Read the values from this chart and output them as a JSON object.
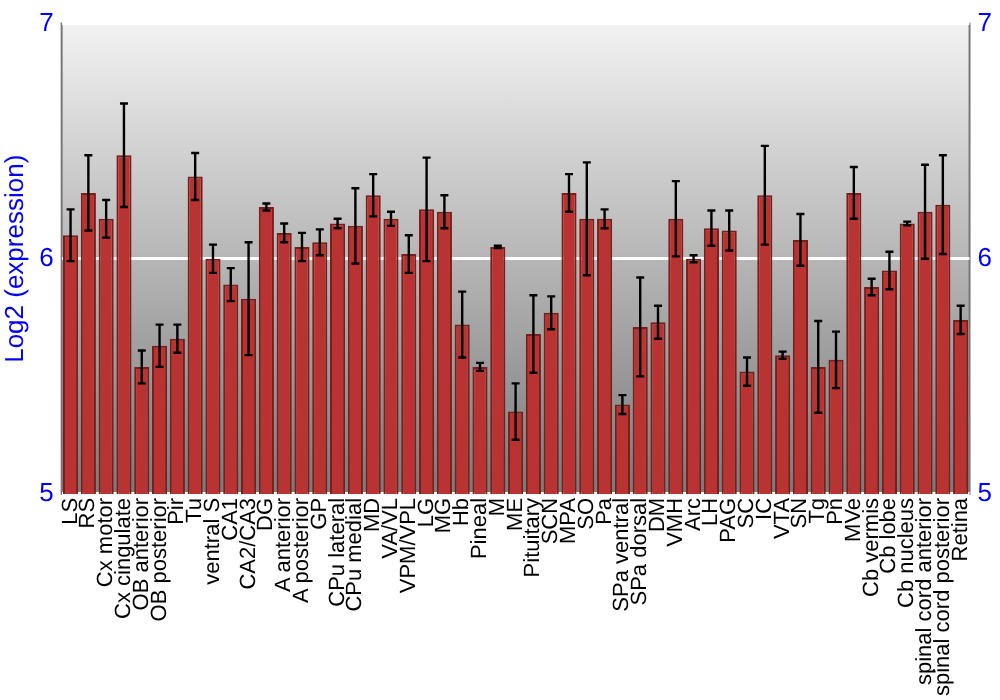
{
  "chart_data": {
    "type": "bar",
    "ylabel": "Log2 (expression)",
    "categories": [
      "LS",
      "RS",
      "Cx motor",
      "Cx cingulate",
      "OB anterior",
      "OB posterior",
      "Pir",
      "Tu",
      "ventral S",
      "CA1",
      "CA2/CA3",
      "DG",
      "A anterior",
      "A posterior",
      "GP",
      "CPu lateral",
      "CPu medial",
      "MD",
      "VA/VL",
      "VPM/VPL",
      "LG",
      "MG",
      "Hb",
      "Pineal",
      "M",
      "ME",
      "Pituitary",
      "SCN",
      "MPA",
      "SO",
      "Pa",
      "SPa ventral",
      "SPa dorsal",
      "DM",
      "VMH",
      "Arc",
      "LH",
      "PAG",
      "SC",
      "IC",
      "VTA",
      "SN",
      "Tg",
      "Pn",
      "MVe",
      "Cb vermis",
      "Cb lobe",
      "Cb nucleus",
      "spinal cord anterior",
      "spinal cord posterior",
      "Retina"
    ],
    "values": [
      6.1,
      6.28,
      6.17,
      6.44,
      5.54,
      5.63,
      5.66,
      6.35,
      6.0,
      5.89,
      5.83,
      6.22,
      6.11,
      6.05,
      6.07,
      6.15,
      6.14,
      6.27,
      6.17,
      6.02,
      6.21,
      6.2,
      5.72,
      5.54,
      6.05,
      5.35,
      5.68,
      5.77,
      6.28,
      6.17,
      6.17,
      5.38,
      5.71,
      5.73,
      6.17,
      6.0,
      6.13,
      6.12,
      5.52,
      6.27,
      5.59,
      6.08,
      5.54,
      5.57,
      6.28,
      5.88,
      5.95,
      6.15,
      6.2,
      6.23,
      5.74
    ],
    "errors": [
      0.11,
      0.16,
      0.08,
      0.22,
      0.07,
      0.09,
      0.06,
      0.1,
      0.06,
      0.07,
      0.24,
      0.015,
      0.04,
      0.06,
      0.055,
      0.02,
      0.16,
      0.09,
      0.03,
      0.08,
      0.22,
      0.07,
      0.14,
      0.017,
      0.005,
      0.12,
      0.165,
      0.07,
      0.08,
      0.24,
      0.04,
      0.04,
      0.21,
      0.07,
      0.16,
      0.015,
      0.075,
      0.085,
      0.06,
      0.21,
      0.015,
      0.11,
      0.195,
      0.12,
      0.11,
      0.035,
      0.08,
      0.008,
      0.2,
      0.21,
      0.06
    ],
    "color": "#b83331",
    "ylim": [
      5,
      7
    ],
    "yticks": [
      5,
      6,
      7
    ],
    "y2lim": [
      5,
      7
    ],
    "y2ticks": [
      5,
      6,
      7
    ],
    "grid": "y"
  }
}
